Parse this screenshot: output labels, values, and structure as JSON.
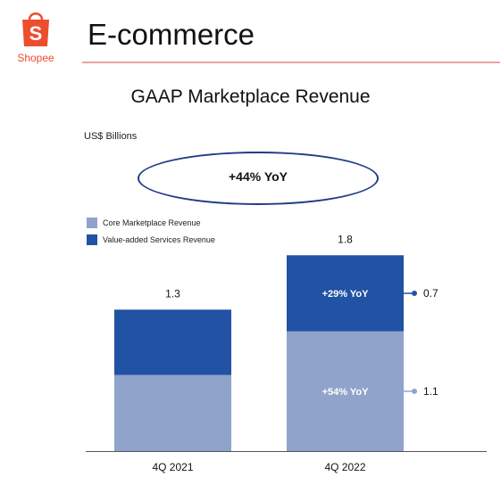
{
  "brand": {
    "name": "Shopee",
    "logo_letter": "S",
    "color": "#ee4d2d"
  },
  "page_title": "E-commerce",
  "chart_title": "GAAP Marketplace Revenue",
  "units": "US$ Billions",
  "callout": "+44% YoY",
  "colors": {
    "core": "#8fa3cb",
    "vas": "#2152a3",
    "callout_border": "#203c85"
  },
  "chart_data": {
    "type": "bar",
    "stacked": true,
    "title": "GAAP Marketplace Revenue",
    "ylabel": "US$ Billions",
    "categories": [
      "4Q 2021",
      "4Q 2022"
    ],
    "totals": [
      1.3,
      1.8
    ],
    "series": [
      {
        "name": "Core Marketplace Revenue",
        "values": [
          0.7,
          1.1
        ],
        "labels": [
          "",
          "1.1"
        ],
        "growth": [
          "",
          "+54% YoY"
        ]
      },
      {
        "name": "Value-added Services Revenue",
        "values": [
          0.6,
          0.7
        ],
        "labels": [
          "",
          "0.7"
        ],
        "growth": [
          "",
          "+29% YoY"
        ]
      }
    ],
    "ylim": [
      0,
      1.95
    ],
    "legend_position": "top-left",
    "grid": false
  }
}
